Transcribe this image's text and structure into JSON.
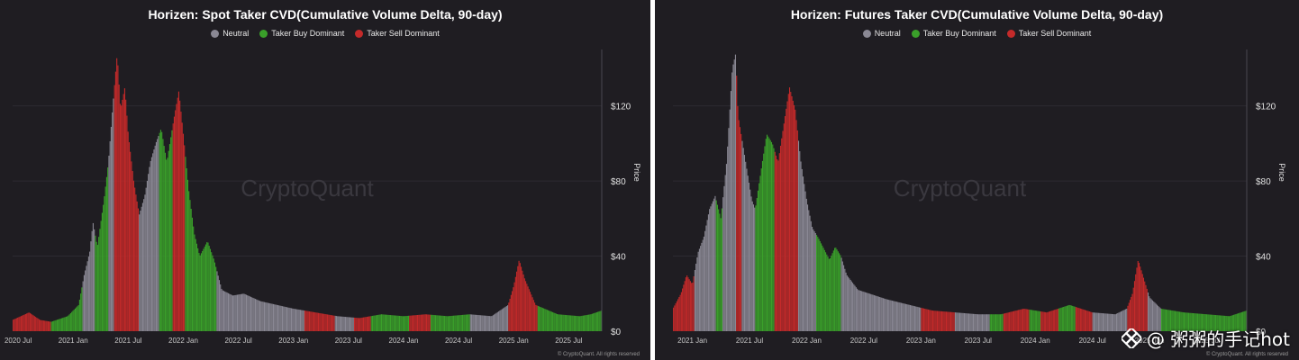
{
  "colors": {
    "neutral": "#8a8894",
    "buy": "#3aa02a",
    "sell": "#c42a2a",
    "background": "#1f1d22",
    "grid": "#2c2a31"
  },
  "legend": {
    "neutral": "Neutral",
    "buy": "Taker Buy Dominant",
    "sell": "Taker Sell Dominant"
  },
  "watermark": "CryptoQuant",
  "overlay_text": "@ 粥粥的手记hot",
  "overlay_icon": "binance-square-icon",
  "chart_data": [
    {
      "type": "bar",
      "title": "Horizen: Spot Taker CVD(Cumulative Volume Delta, 90-day)",
      "ylabel": "Price",
      "ylim": [
        0,
        150
      ],
      "yticks": [
        "$0",
        "$40",
        "$80",
        "$120"
      ],
      "yticks_values": [
        0,
        40,
        80,
        120
      ],
      "xticks": [
        "2020 Jul",
        "2021 Jan",
        "2021 Jul",
        "2022 Jan",
        "2022 Jul",
        "2023 Jan",
        "2023 Jul",
        "2024 Jan",
        "2024 Jul",
        "2025 Jan",
        "2025 Jul"
      ],
      "xticks_t": [
        0.0,
        0.5,
        1.0,
        1.5,
        2.0,
        2.5,
        3.0,
        3.5,
        4.0,
        4.5,
        5.0
      ],
      "x_range": [
        -0.05,
        5.3
      ],
      "copyright": "© CryptoQuant. All rights reserved",
      "segments": [
        {
          "from": -0.05,
          "to": 0.3,
          "signal": "sell"
        },
        {
          "from": 0.3,
          "to": 0.58,
          "signal": "buy"
        },
        {
          "from": 0.58,
          "to": 0.7,
          "signal": "neutral"
        },
        {
          "from": 0.7,
          "to": 0.82,
          "signal": "buy"
        },
        {
          "from": 0.82,
          "to": 0.87,
          "signal": "neutral"
        },
        {
          "from": 0.87,
          "to": 1.1,
          "signal": "sell"
        },
        {
          "from": 1.1,
          "to": 1.28,
          "signal": "neutral"
        },
        {
          "from": 1.28,
          "to": 1.4,
          "signal": "buy"
        },
        {
          "from": 1.4,
          "to": 1.52,
          "signal": "sell"
        },
        {
          "from": 1.52,
          "to": 1.8,
          "signal": "buy"
        },
        {
          "from": 1.8,
          "to": 2.6,
          "signal": "neutral"
        },
        {
          "from": 2.6,
          "to": 2.88,
          "signal": "sell"
        },
        {
          "from": 2.88,
          "to": 3.05,
          "signal": "neutral"
        },
        {
          "from": 3.05,
          "to": 3.2,
          "signal": "sell"
        },
        {
          "from": 3.2,
          "to": 3.55,
          "signal": "buy"
        },
        {
          "from": 3.55,
          "to": 3.75,
          "signal": "sell"
        },
        {
          "from": 3.75,
          "to": 4.1,
          "signal": "buy"
        },
        {
          "from": 4.1,
          "to": 4.45,
          "signal": "neutral"
        },
        {
          "from": 4.45,
          "to": 4.72,
          "signal": "sell"
        },
        {
          "from": 4.72,
          "to": 5.3,
          "signal": "buy"
        }
      ],
      "price_points": [
        [
          -0.05,
          6
        ],
        [
          0.1,
          10
        ],
        [
          0.2,
          6
        ],
        [
          0.3,
          5
        ],
        [
          0.45,
          8
        ],
        [
          0.55,
          14
        ],
        [
          0.6,
          30
        ],
        [
          0.65,
          42
        ],
        [
          0.68,
          58
        ],
        [
          0.72,
          45
        ],
        [
          0.78,
          70
        ],
        [
          0.82,
          90
        ],
        [
          0.86,
          120
        ],
        [
          0.9,
          148
        ],
        [
          0.93,
          118
        ],
        [
          0.97,
          130
        ],
        [
          1.0,
          105
        ],
        [
          1.05,
          80
        ],
        [
          1.1,
          62
        ],
        [
          1.15,
          72
        ],
        [
          1.2,
          90
        ],
        [
          1.25,
          100
        ],
        [
          1.3,
          108
        ],
        [
          1.35,
          90
        ],
        [
          1.42,
          115
        ],
        [
          1.46,
          128
        ],
        [
          1.5,
          105
        ],
        [
          1.55,
          75
        ],
        [
          1.6,
          52
        ],
        [
          1.65,
          40
        ],
        [
          1.72,
          48
        ],
        [
          1.78,
          38
        ],
        [
          1.85,
          22
        ],
        [
          1.95,
          19
        ],
        [
          2.05,
          20
        ],
        [
          2.2,
          16
        ],
        [
          2.35,
          14
        ],
        [
          2.5,
          12
        ],
        [
          2.7,
          10
        ],
        [
          2.9,
          8
        ],
        [
          3.1,
          7
        ],
        [
          3.3,
          9
        ],
        [
          3.5,
          8
        ],
        [
          3.7,
          9
        ],
        [
          3.9,
          8
        ],
        [
          4.1,
          9
        ],
        [
          4.3,
          8
        ],
        [
          4.45,
          14
        ],
        [
          4.5,
          24
        ],
        [
          4.55,
          38
        ],
        [
          4.6,
          28
        ],
        [
          4.7,
          14
        ],
        [
          4.9,
          9
        ],
        [
          5.1,
          8
        ],
        [
          5.2,
          9
        ],
        [
          5.3,
          11
        ]
      ]
    },
    {
      "type": "bar",
      "title": "Horizen: Futures Taker CVD(Cumulative Volume Delta, 90-day)",
      "ylabel": "Price",
      "ylim": [
        0,
        150
      ],
      "yticks": [
        "$0",
        "$40",
        "$80",
        "$120"
      ],
      "yticks_values": [
        0,
        40,
        80,
        120
      ],
      "xticks": [
        "2021 Jan",
        "2021 Jul",
        "2022 Jan",
        "2022 Jul",
        "2023 Jan",
        "2023 Jul",
        "2024 Jan",
        "2024 Jul",
        "2025 Jan",
        "2025 Jul"
      ],
      "xticks_t": [
        0.5,
        1.0,
        1.5,
        2.0,
        2.5,
        3.0,
        3.5,
        4.0,
        4.5,
        5.0
      ],
      "x_range": [
        0.33,
        5.35
      ],
      "copyright": "© CryptoQuant. All rights reserved",
      "segments": [
        {
          "from": 0.33,
          "to": 0.52,
          "signal": "sell"
        },
        {
          "from": 0.52,
          "to": 0.7,
          "signal": "neutral"
        },
        {
          "from": 0.7,
          "to": 0.76,
          "signal": "buy"
        },
        {
          "from": 0.76,
          "to": 0.88,
          "signal": "neutral"
        },
        {
          "from": 0.88,
          "to": 0.93,
          "signal": "sell"
        },
        {
          "from": 0.93,
          "to": 1.05,
          "signal": "neutral"
        },
        {
          "from": 1.05,
          "to": 1.22,
          "signal": "buy"
        },
        {
          "from": 1.22,
          "to": 1.42,
          "signal": "sell"
        },
        {
          "from": 1.42,
          "to": 1.58,
          "signal": "neutral"
        },
        {
          "from": 1.58,
          "to": 1.8,
          "signal": "buy"
        },
        {
          "from": 1.8,
          "to": 2.5,
          "signal": "neutral"
        },
        {
          "from": 2.5,
          "to": 2.8,
          "signal": "sell"
        },
        {
          "from": 2.8,
          "to": 3.1,
          "signal": "neutral"
        },
        {
          "from": 3.1,
          "to": 3.22,
          "signal": "buy"
        },
        {
          "from": 3.22,
          "to": 3.45,
          "signal": "sell"
        },
        {
          "from": 3.45,
          "to": 3.55,
          "signal": "buy"
        },
        {
          "from": 3.55,
          "to": 3.7,
          "signal": "sell"
        },
        {
          "from": 3.7,
          "to": 3.85,
          "signal": "buy"
        },
        {
          "from": 3.85,
          "to": 4.0,
          "signal": "sell"
        },
        {
          "from": 4.0,
          "to": 4.3,
          "signal": "neutral"
        },
        {
          "from": 4.3,
          "to": 4.48,
          "signal": "sell"
        },
        {
          "from": 4.48,
          "to": 4.6,
          "signal": "neutral"
        },
        {
          "from": 4.6,
          "to": 5.35,
          "signal": "buy"
        }
      ],
      "price_points": [
        [
          0.33,
          12
        ],
        [
          0.4,
          20
        ],
        [
          0.45,
          30
        ],
        [
          0.5,
          25
        ],
        [
          0.55,
          42
        ],
        [
          0.6,
          50
        ],
        [
          0.65,
          65
        ],
        [
          0.7,
          72
        ],
        [
          0.75,
          60
        ],
        [
          0.8,
          90
        ],
        [
          0.85,
          140
        ],
        [
          0.88,
          148
        ],
        [
          0.9,
          115
        ],
        [
          0.94,
          100
        ],
        [
          0.98,
          85
        ],
        [
          1.02,
          70
        ],
        [
          1.05,
          65
        ],
        [
          1.1,
          85
        ],
        [
          1.15,
          105
        ],
        [
          1.2,
          100
        ],
        [
          1.25,
          90
        ],
        [
          1.3,
          110
        ],
        [
          1.35,
          130
        ],
        [
          1.4,
          118
        ],
        [
          1.45,
          90
        ],
        [
          1.5,
          70
        ],
        [
          1.55,
          55
        ],
        [
          1.6,
          50
        ],
        [
          1.7,
          38
        ],
        [
          1.75,
          45
        ],
        [
          1.8,
          40
        ],
        [
          1.85,
          30
        ],
        [
          1.95,
          22
        ],
        [
          2.05,
          20
        ],
        [
          2.2,
          17
        ],
        [
          2.4,
          14
        ],
        [
          2.6,
          11
        ],
        [
          2.8,
          10
        ],
        [
          3.0,
          9
        ],
        [
          3.2,
          9
        ],
        [
          3.4,
          12
        ],
        [
          3.6,
          10
        ],
        [
          3.8,
          14
        ],
        [
          4.0,
          10
        ],
        [
          4.2,
          9
        ],
        [
          4.3,
          12
        ],
        [
          4.35,
          20
        ],
        [
          4.4,
          38
        ],
        [
          4.45,
          28
        ],
        [
          4.5,
          18
        ],
        [
          4.6,
          12
        ],
        [
          4.8,
          10
        ],
        [
          5.0,
          9
        ],
        [
          5.2,
          8
        ],
        [
          5.35,
          11
        ]
      ]
    }
  ]
}
